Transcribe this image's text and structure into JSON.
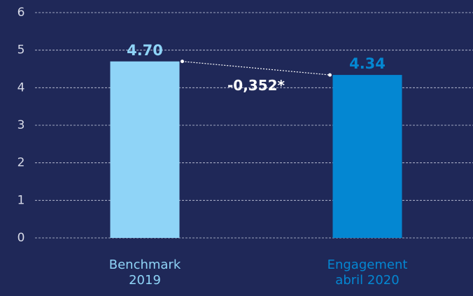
{
  "chart_data": {
    "type": "bar",
    "categories": [
      "Benchmark 2019",
      "Engagement abril 2020"
    ],
    "values": [
      4.7,
      4.34
    ],
    "value_labels": [
      "4.70",
      "4.34"
    ],
    "colors": [
      "#8fd4f7",
      "#0487d2"
    ],
    "ylim": [
      0,
      6
    ],
    "yticks": [
      0,
      1,
      2,
      3,
      4,
      5,
      6
    ],
    "grid": true,
    "annotation": "-0,352*"
  }
}
